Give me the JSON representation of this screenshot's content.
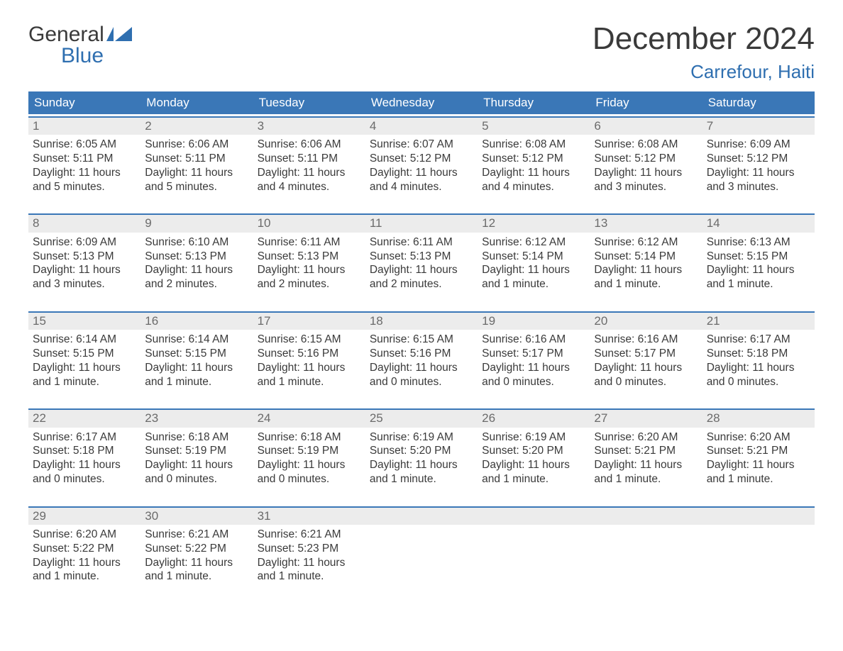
{
  "logo": {
    "word1": "General",
    "word2": "Blue"
  },
  "header": {
    "month_title": "December 2024",
    "location": "Carrefour, Haiti"
  },
  "colors": {
    "accent": "#3a77b7",
    "accent_text": "#2f6fb0",
    "header_bg": "#3a77b7",
    "day_number_bg": "#ececec",
    "day_number_color": "#6b6b6b",
    "body_text": "#3a3a3a",
    "page_bg": "#ffffff"
  },
  "weekdays": [
    "Sunday",
    "Monday",
    "Tuesday",
    "Wednesday",
    "Thursday",
    "Friday",
    "Saturday"
  ],
  "weeks": [
    [
      {
        "num": "1",
        "sunrise": "Sunrise: 6:05 AM",
        "sunset": "Sunset: 5:11 PM",
        "daylight1": "Daylight: 11 hours",
        "daylight2": "and 5 minutes."
      },
      {
        "num": "2",
        "sunrise": "Sunrise: 6:06 AM",
        "sunset": "Sunset: 5:11 PM",
        "daylight1": "Daylight: 11 hours",
        "daylight2": "and 5 minutes."
      },
      {
        "num": "3",
        "sunrise": "Sunrise: 6:06 AM",
        "sunset": "Sunset: 5:11 PM",
        "daylight1": "Daylight: 11 hours",
        "daylight2": "and 4 minutes."
      },
      {
        "num": "4",
        "sunrise": "Sunrise: 6:07 AM",
        "sunset": "Sunset: 5:12 PM",
        "daylight1": "Daylight: 11 hours",
        "daylight2": "and 4 minutes."
      },
      {
        "num": "5",
        "sunrise": "Sunrise: 6:08 AM",
        "sunset": "Sunset: 5:12 PM",
        "daylight1": "Daylight: 11 hours",
        "daylight2": "and 4 minutes."
      },
      {
        "num": "6",
        "sunrise": "Sunrise: 6:08 AM",
        "sunset": "Sunset: 5:12 PM",
        "daylight1": "Daylight: 11 hours",
        "daylight2": "and 3 minutes."
      },
      {
        "num": "7",
        "sunrise": "Sunrise: 6:09 AM",
        "sunset": "Sunset: 5:12 PM",
        "daylight1": "Daylight: 11 hours",
        "daylight2": "and 3 minutes."
      }
    ],
    [
      {
        "num": "8",
        "sunrise": "Sunrise: 6:09 AM",
        "sunset": "Sunset: 5:13 PM",
        "daylight1": "Daylight: 11 hours",
        "daylight2": "and 3 minutes."
      },
      {
        "num": "9",
        "sunrise": "Sunrise: 6:10 AM",
        "sunset": "Sunset: 5:13 PM",
        "daylight1": "Daylight: 11 hours",
        "daylight2": "and 2 minutes."
      },
      {
        "num": "10",
        "sunrise": "Sunrise: 6:11 AM",
        "sunset": "Sunset: 5:13 PM",
        "daylight1": "Daylight: 11 hours",
        "daylight2": "and 2 minutes."
      },
      {
        "num": "11",
        "sunrise": "Sunrise: 6:11 AM",
        "sunset": "Sunset: 5:13 PM",
        "daylight1": "Daylight: 11 hours",
        "daylight2": "and 2 minutes."
      },
      {
        "num": "12",
        "sunrise": "Sunrise: 6:12 AM",
        "sunset": "Sunset: 5:14 PM",
        "daylight1": "Daylight: 11 hours",
        "daylight2": "and 1 minute."
      },
      {
        "num": "13",
        "sunrise": "Sunrise: 6:12 AM",
        "sunset": "Sunset: 5:14 PM",
        "daylight1": "Daylight: 11 hours",
        "daylight2": "and 1 minute."
      },
      {
        "num": "14",
        "sunrise": "Sunrise: 6:13 AM",
        "sunset": "Sunset: 5:15 PM",
        "daylight1": "Daylight: 11 hours",
        "daylight2": "and 1 minute."
      }
    ],
    [
      {
        "num": "15",
        "sunrise": "Sunrise: 6:14 AM",
        "sunset": "Sunset: 5:15 PM",
        "daylight1": "Daylight: 11 hours",
        "daylight2": "and 1 minute."
      },
      {
        "num": "16",
        "sunrise": "Sunrise: 6:14 AM",
        "sunset": "Sunset: 5:15 PM",
        "daylight1": "Daylight: 11 hours",
        "daylight2": "and 1 minute."
      },
      {
        "num": "17",
        "sunrise": "Sunrise: 6:15 AM",
        "sunset": "Sunset: 5:16 PM",
        "daylight1": "Daylight: 11 hours",
        "daylight2": "and 1 minute."
      },
      {
        "num": "18",
        "sunrise": "Sunrise: 6:15 AM",
        "sunset": "Sunset: 5:16 PM",
        "daylight1": "Daylight: 11 hours",
        "daylight2": "and 0 minutes."
      },
      {
        "num": "19",
        "sunrise": "Sunrise: 6:16 AM",
        "sunset": "Sunset: 5:17 PM",
        "daylight1": "Daylight: 11 hours",
        "daylight2": "and 0 minutes."
      },
      {
        "num": "20",
        "sunrise": "Sunrise: 6:16 AM",
        "sunset": "Sunset: 5:17 PM",
        "daylight1": "Daylight: 11 hours",
        "daylight2": "and 0 minutes."
      },
      {
        "num": "21",
        "sunrise": "Sunrise: 6:17 AM",
        "sunset": "Sunset: 5:18 PM",
        "daylight1": "Daylight: 11 hours",
        "daylight2": "and 0 minutes."
      }
    ],
    [
      {
        "num": "22",
        "sunrise": "Sunrise: 6:17 AM",
        "sunset": "Sunset: 5:18 PM",
        "daylight1": "Daylight: 11 hours",
        "daylight2": "and 0 minutes."
      },
      {
        "num": "23",
        "sunrise": "Sunrise: 6:18 AM",
        "sunset": "Sunset: 5:19 PM",
        "daylight1": "Daylight: 11 hours",
        "daylight2": "and 0 minutes."
      },
      {
        "num": "24",
        "sunrise": "Sunrise: 6:18 AM",
        "sunset": "Sunset: 5:19 PM",
        "daylight1": "Daylight: 11 hours",
        "daylight2": "and 0 minutes."
      },
      {
        "num": "25",
        "sunrise": "Sunrise: 6:19 AM",
        "sunset": "Sunset: 5:20 PM",
        "daylight1": "Daylight: 11 hours",
        "daylight2": "and 1 minute."
      },
      {
        "num": "26",
        "sunrise": "Sunrise: 6:19 AM",
        "sunset": "Sunset: 5:20 PM",
        "daylight1": "Daylight: 11 hours",
        "daylight2": "and 1 minute."
      },
      {
        "num": "27",
        "sunrise": "Sunrise: 6:20 AM",
        "sunset": "Sunset: 5:21 PM",
        "daylight1": "Daylight: 11 hours",
        "daylight2": "and 1 minute."
      },
      {
        "num": "28",
        "sunrise": "Sunrise: 6:20 AM",
        "sunset": "Sunset: 5:21 PM",
        "daylight1": "Daylight: 11 hours",
        "daylight2": "and 1 minute."
      }
    ],
    [
      {
        "num": "29",
        "sunrise": "Sunrise: 6:20 AM",
        "sunset": "Sunset: 5:22 PM",
        "daylight1": "Daylight: 11 hours",
        "daylight2": "and 1 minute."
      },
      {
        "num": "30",
        "sunrise": "Sunrise: 6:21 AM",
        "sunset": "Sunset: 5:22 PM",
        "daylight1": "Daylight: 11 hours",
        "daylight2": "and 1 minute."
      },
      {
        "num": "31",
        "sunrise": "Sunrise: 6:21 AM",
        "sunset": "Sunset: 5:23 PM",
        "daylight1": "Daylight: 11 hours",
        "daylight2": "and 1 minute."
      },
      {
        "empty": true
      },
      {
        "empty": true
      },
      {
        "empty": true
      },
      {
        "empty": true
      }
    ]
  ]
}
